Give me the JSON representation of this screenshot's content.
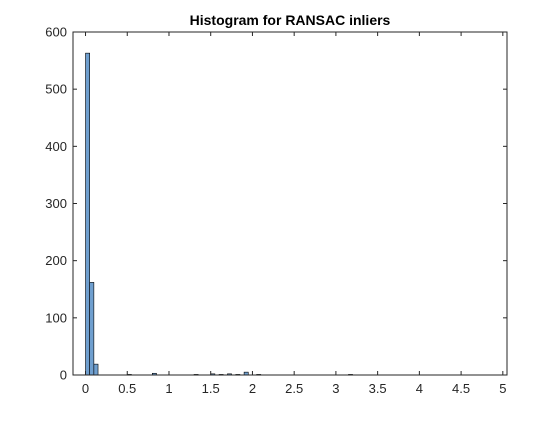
{
  "chart_data": {
    "type": "bar",
    "title": "Histogram for RANSAC inliers",
    "xlabel": "",
    "ylabel": "",
    "xlim": [
      -0.15,
      5.05
    ],
    "ylim": [
      0,
      600
    ],
    "xticks": [
      0,
      0.5,
      1,
      1.5,
      2,
      2.5,
      3,
      3.5,
      4,
      4.5,
      5
    ],
    "xtick_labels": [
      "0",
      "0.5",
      "1",
      "1.5",
      "2",
      "2.5",
      "3",
      "3.5",
      "4",
      "4.5",
      "5"
    ],
    "yticks": [
      0,
      100,
      200,
      300,
      400,
      500,
      600
    ],
    "ytick_labels": [
      "0",
      "100",
      "200",
      "300",
      "400",
      "500",
      "600"
    ],
    "bin_width": 0.05,
    "bin_starts": [
      0,
      0.05,
      0.1,
      0.5,
      0.8,
      1.3,
      1.5,
      1.6,
      1.7,
      1.8,
      1.9,
      2.05,
      3.15
    ],
    "values": [
      563,
      162,
      19,
      1,
      3,
      1,
      2,
      1,
      2,
      1,
      5,
      1,
      1
    ],
    "bar_color": "#6f9fcf",
    "edge_color": "#000000",
    "grid": false
  }
}
